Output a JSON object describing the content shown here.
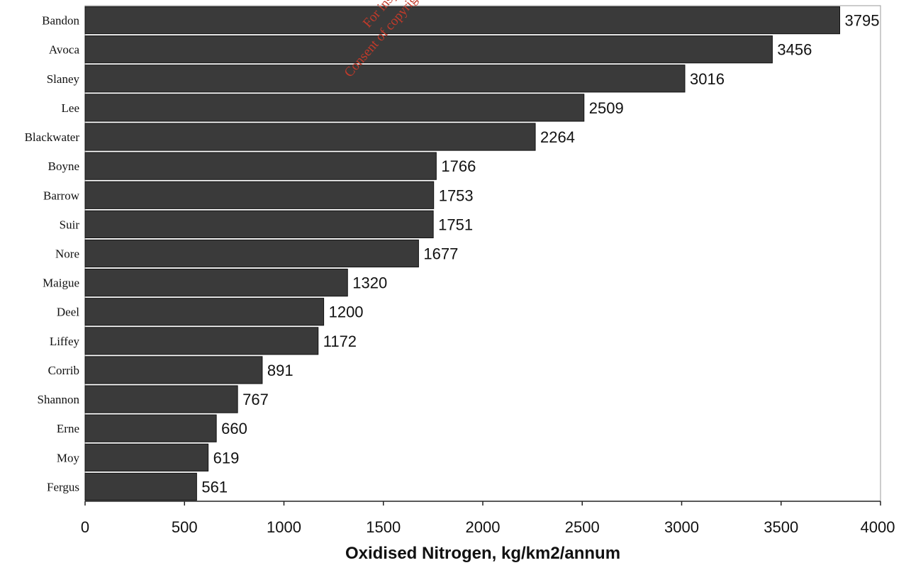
{
  "chart_data": {
    "type": "bar",
    "orientation": "horizontal",
    "categories": [
      "Bandon",
      "Avoca",
      "Slaney",
      "Lee",
      "Blackwater",
      "Boyne",
      "Barrow",
      "Suir",
      "Nore",
      "Maigue",
      "Deel",
      "Liffey",
      "Corrib",
      "Shannon",
      "Erne",
      "Moy",
      "Fergus"
    ],
    "values": [
      3795,
      3456,
      3016,
      2509,
      2264,
      1766,
      1753,
      1751,
      1677,
      1320,
      1200,
      1172,
      891,
      767,
      660,
      619,
      561
    ],
    "value_labels": [
      "3795",
      "3456",
      "3016",
      "2509",
      "2264",
      "1766",
      "1753",
      "1751",
      "1677",
      "1320",
      "1200",
      "1172",
      "891",
      "767",
      "660",
      "619",
      "561"
    ],
    "xlabel": "Oxidised Nitrogen, kg/km2/annum",
    "ylabel": "",
    "xlim": [
      0,
      4000
    ],
    "xticks": [
      0,
      500,
      1000,
      1500,
      2000,
      2500,
      3000,
      3500,
      4000
    ],
    "xtick_labels": [
      "0",
      "500",
      "1000",
      "1500",
      "2000",
      "2500",
      "3000",
      "3500",
      "4000"
    ],
    "grid": false,
    "legend": "none",
    "bar_color": "#3a3a3a"
  },
  "watermark": {
    "line1": "For inspection",
    "line2": "Consent of copyright owner r",
    "color": "#c23a2a"
  }
}
